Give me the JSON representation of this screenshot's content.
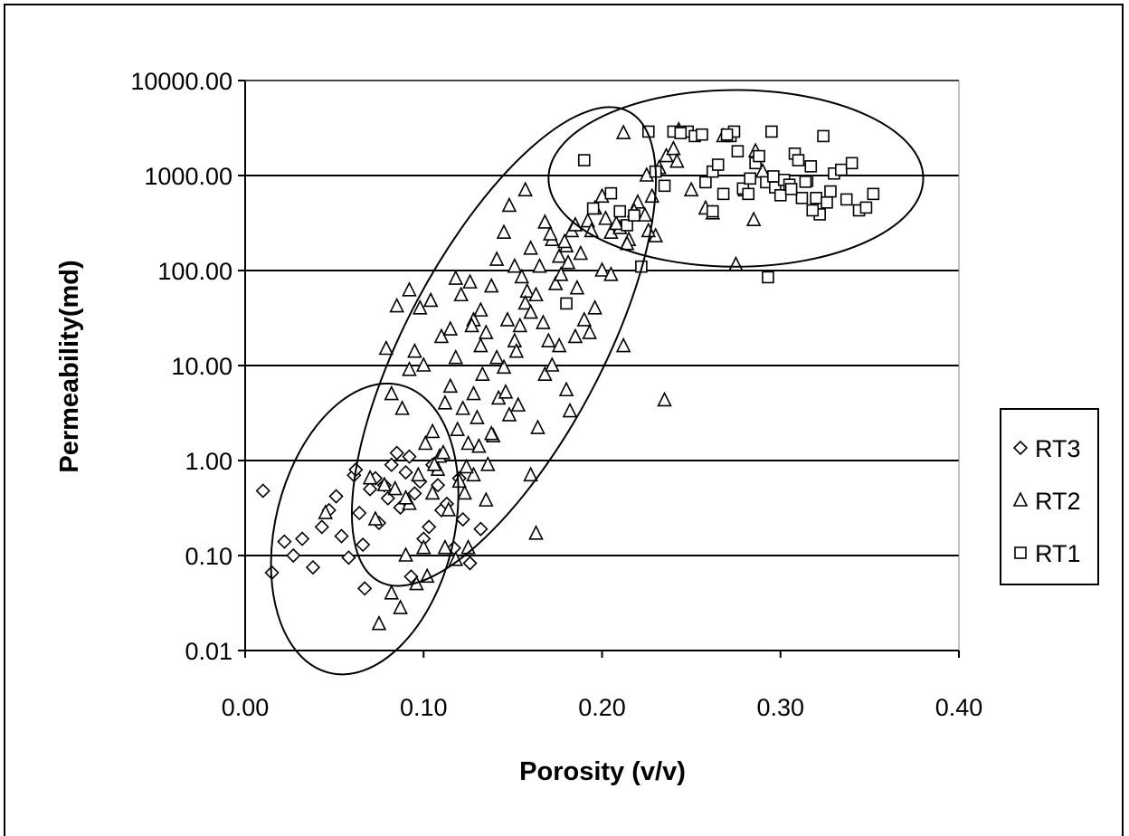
{
  "chart_data": {
    "type": "scatter",
    "title": "",
    "xlabel": "Porosity (v/v)",
    "ylabel": "Permeability(md)",
    "xlim": [
      0,
      0.4
    ],
    "ylim": [
      0.01,
      10000
    ],
    "yscale": "log",
    "grid": "horizontal",
    "legend_position": "right",
    "x_ticks": [
      "0.00",
      "0.10",
      "0.20",
      "0.30",
      "0.40"
    ],
    "y_ticks": [
      "10000.00",
      "1000.00",
      "100.00",
      "10.00",
      "1.00",
      "0.10",
      "0.01"
    ],
    "y_tick_values": [
      10000,
      1000,
      100,
      10,
      1,
      0.1,
      0.01
    ],
    "x_tick_values": [
      0,
      0.1,
      0.2,
      0.3,
      0.4
    ],
    "ellipses": [
      {
        "name": "RT3 envelope",
        "cx": 0.067,
        "cy_log": -0.72,
        "rx": 0.05,
        "ry_log": 1.56,
        "angle": 14
      },
      {
        "name": "RT2 envelope",
        "cx": 0.145,
        "cy_log": 1.2,
        "rx": 0.055,
        "ry_log": 2.8,
        "angle": 28
      },
      {
        "name": "RT1 envelope",
        "cx": 0.275,
        "cy_log": 2.97,
        "rx": 0.105,
        "ry_log": 0.93,
        "angle": 0
      }
    ],
    "series": [
      {
        "name": "RT3",
        "marker": "diamond",
        "points": [
          [
            0.01,
            0.48
          ],
          [
            0.015,
            0.066
          ],
          [
            0.022,
            0.14
          ],
          [
            0.027,
            0.1
          ],
          [
            0.032,
            0.15
          ],
          [
            0.038,
            0.075
          ],
          [
            0.043,
            0.2
          ],
          [
            0.047,
            0.3
          ],
          [
            0.051,
            0.42
          ],
          [
            0.054,
            0.16
          ],
          [
            0.058,
            0.095
          ],
          [
            0.061,
            0.7
          ],
          [
            0.064,
            0.28
          ],
          [
            0.066,
            0.13
          ],
          [
            0.067,
            0.045
          ],
          [
            0.07,
            0.5
          ],
          [
            0.073,
            0.65
          ],
          [
            0.075,
            0.22
          ],
          [
            0.078,
            0.55
          ],
          [
            0.082,
            0.9
          ],
          [
            0.085,
            1.2
          ],
          [
            0.087,
            0.32
          ],
          [
            0.09,
            0.75
          ],
          [
            0.093,
            0.06
          ],
          [
            0.095,
            0.45
          ],
          [
            0.1,
            0.15
          ],
          [
            0.105,
            0.9
          ],
          [
            0.11,
            0.3
          ],
          [
            0.117,
            0.12
          ],
          [
            0.122,
            0.24
          ],
          [
            0.126,
            0.083
          ],
          [
            0.132,
            0.19
          ],
          [
            0.062,
            0.8
          ],
          [
            0.08,
            0.4
          ],
          [
            0.098,
            0.6
          ],
          [
            0.108,
            0.55
          ],
          [
            0.113,
            0.35
          ],
          [
            0.12,
            0.65
          ],
          [
            0.092,
            1.1
          ],
          [
            0.103,
            0.2
          ]
        ]
      },
      {
        "name": "RT2",
        "marker": "triangle",
        "points": [
          [
            0.045,
            0.28
          ],
          [
            0.07,
            0.65
          ],
          [
            0.073,
            0.24
          ],
          [
            0.075,
            0.019
          ],
          [
            0.078,
            0.55
          ],
          [
            0.082,
            0.04
          ],
          [
            0.084,
            0.5
          ],
          [
            0.087,
            0.028
          ],
          [
            0.09,
            0.1
          ],
          [
            0.092,
            0.35
          ],
          [
            0.096,
            0.05
          ],
          [
            0.1,
            0.12
          ],
          [
            0.102,
            0.06
          ],
          [
            0.105,
            0.45
          ],
          [
            0.108,
            0.8
          ],
          [
            0.112,
            0.12
          ],
          [
            0.114,
            0.3
          ],
          [
            0.118,
            0.09
          ],
          [
            0.12,
            0.6
          ],
          [
            0.123,
            0.45
          ],
          [
            0.125,
            0.12
          ],
          [
            0.128,
            0.7
          ],
          [
            0.135,
            0.38
          ],
          [
            0.163,
            0.17
          ],
          [
            0.079,
            15
          ],
          [
            0.085,
            42
          ],
          [
            0.092,
            62
          ],
          [
            0.098,
            40
          ],
          [
            0.104,
            48
          ],
          [
            0.11,
            20
          ],
          [
            0.115,
            24
          ],
          [
            0.118,
            82
          ],
          [
            0.121,
            55
          ],
          [
            0.126,
            75
          ],
          [
            0.128,
            30
          ],
          [
            0.132,
            38
          ],
          [
            0.135,
            22
          ],
          [
            0.138,
            68
          ],
          [
            0.141,
            130
          ],
          [
            0.145,
            250
          ],
          [
            0.148,
            480
          ],
          [
            0.151,
            110
          ],
          [
            0.155,
            85
          ],
          [
            0.158,
            60
          ],
          [
            0.16,
            170
          ],
          [
            0.165,
            110
          ],
          [
            0.168,
            320
          ],
          [
            0.172,
            210
          ],
          [
            0.176,
            140
          ],
          [
            0.18,
            180
          ],
          [
            0.183,
            260
          ],
          [
            0.188,
            150
          ],
          [
            0.192,
            330
          ],
          [
            0.196,
            450
          ],
          [
            0.2,
            600
          ],
          [
            0.205,
            250
          ],
          [
            0.21,
            280
          ],
          [
            0.215,
            210
          ],
          [
            0.22,
            520
          ],
          [
            0.224,
            380
          ],
          [
            0.228,
            600
          ],
          [
            0.232,
            1200
          ],
          [
            0.236,
            1600
          ],
          [
            0.24,
            1900
          ],
          [
            0.243,
            3000
          ],
          [
            0.212,
            2800
          ],
          [
            0.225,
            1000
          ],
          [
            0.23,
            230
          ],
          [
            0.25,
            700
          ],
          [
            0.258,
            450
          ],
          [
            0.262,
            400
          ],
          [
            0.268,
            2600
          ],
          [
            0.275,
            115
          ],
          [
            0.28,
            700
          ],
          [
            0.286,
            1800
          ],
          [
            0.29,
            1100
          ],
          [
            0.285,
            340
          ],
          [
            0.157,
            700
          ],
          [
            0.16,
            0.7
          ],
          [
            0.164,
            2.2
          ],
          [
            0.168,
            8
          ],
          [
            0.172,
            10
          ],
          [
            0.176,
            16
          ],
          [
            0.18,
            5.5
          ],
          [
            0.182,
            3.3
          ],
          [
            0.185,
            20
          ],
          [
            0.19,
            30
          ],
          [
            0.193,
            22
          ],
          [
            0.196,
            40
          ],
          [
            0.2,
            100
          ],
          [
            0.205,
            90
          ],
          [
            0.212,
            16
          ],
          [
            0.235,
            4.3
          ],
          [
            0.082,
            5
          ],
          [
            0.088,
            3.5
          ],
          [
            0.092,
            9
          ],
          [
            0.095,
            14
          ],
          [
            0.1,
            10
          ],
          [
            0.105,
            2
          ],
          [
            0.109,
            1.1
          ],
          [
            0.112,
            4
          ],
          [
            0.115,
            6
          ],
          [
            0.118,
            12
          ],
          [
            0.122,
            3.5
          ],
          [
            0.125,
            1.5
          ],
          [
            0.128,
            5
          ],
          [
            0.13,
            2.8
          ],
          [
            0.133,
            8
          ],
          [
            0.136,
            0.9
          ],
          [
            0.139,
            1.8
          ],
          [
            0.142,
            4.5
          ],
          [
            0.145,
            9.5
          ],
          [
            0.148,
            3
          ],
          [
            0.151,
            18
          ],
          [
            0.154,
            26
          ],
          [
            0.157,
            45
          ],
          [
            0.16,
            36
          ],
          [
            0.163,
            55
          ],
          [
            0.167,
            28
          ],
          [
            0.17,
            18
          ],
          [
            0.174,
            72
          ],
          [
            0.177,
            90
          ],
          [
            0.181,
            120
          ],
          [
            0.186,
            65
          ],
          [
            0.09,
            0.4
          ],
          [
            0.097,
            0.7
          ],
          [
            0.101,
            1.5
          ],
          [
            0.106,
            0.9
          ],
          [
            0.111,
            1.2
          ],
          [
            0.119,
            2.1
          ],
          [
            0.124,
            0.85
          ],
          [
            0.131,
            1.4
          ],
          [
            0.138,
            1.9
          ],
          [
            0.146,
            5.2
          ],
          [
            0.153,
            3.8
          ],
          [
            0.141,
            12
          ],
          [
            0.147,
            30
          ],
          [
            0.152,
            14
          ],
          [
            0.132,
            16
          ],
          [
            0.127,
            26
          ],
          [
            0.171,
            240
          ],
          [
            0.179,
            200
          ],
          [
            0.185,
            300
          ],
          [
            0.194,
            260
          ],
          [
            0.202,
            350
          ],
          [
            0.208,
            310
          ],
          [
            0.214,
            190
          ],
          [
            0.218,
            420
          ],
          [
            0.226,
            260
          ],
          [
            0.242,
            1400
          ]
        ]
      },
      {
        "name": "RT1",
        "marker": "square",
        "points": [
          [
            0.18,
            45
          ],
          [
            0.19,
            1450
          ],
          [
            0.195,
            450
          ],
          [
            0.205,
            650
          ],
          [
            0.21,
            420
          ],
          [
            0.214,
            300
          ],
          [
            0.218,
            380
          ],
          [
            0.222,
            110
          ],
          [
            0.226,
            2900
          ],
          [
            0.23,
            1100
          ],
          [
            0.235,
            780
          ],
          [
            0.24,
            2900
          ],
          [
            0.248,
            2900
          ],
          [
            0.252,
            2600
          ],
          [
            0.256,
            2700
          ],
          [
            0.258,
            850
          ],
          [
            0.262,
            1100
          ],
          [
            0.265,
            1300
          ],
          [
            0.268,
            640
          ],
          [
            0.272,
            2600
          ],
          [
            0.274,
            2900
          ],
          [
            0.276,
            1800
          ],
          [
            0.279,
            730
          ],
          [
            0.282,
            640
          ],
          [
            0.286,
            1350
          ],
          [
            0.288,
            1600
          ],
          [
            0.292,
            850
          ],
          [
            0.295,
            2900
          ],
          [
            0.297,
            750
          ],
          [
            0.3,
            620
          ],
          [
            0.302,
            900
          ],
          [
            0.305,
            800
          ],
          [
            0.308,
            1700
          ],
          [
            0.31,
            1450
          ],
          [
            0.312,
            580
          ],
          [
            0.315,
            880
          ],
          [
            0.317,
            1250
          ],
          [
            0.32,
            580
          ],
          [
            0.322,
            390
          ],
          [
            0.324,
            2600
          ],
          [
            0.326,
            520
          ],
          [
            0.328,
            680
          ],
          [
            0.33,
            1050
          ],
          [
            0.334,
            1150
          ],
          [
            0.337,
            560
          ],
          [
            0.34,
            1350
          ],
          [
            0.344,
            430
          ],
          [
            0.348,
            460
          ],
          [
            0.352,
            640
          ],
          [
            0.293,
            85
          ],
          [
            0.262,
            420
          ],
          [
            0.318,
            430
          ],
          [
            0.306,
            720
          ],
          [
            0.283,
            930
          ],
          [
            0.27,
            2700
          ],
          [
            0.244,
            2800
          ],
          [
            0.296,
            980
          ],
          [
            0.314,
            860
          ]
        ]
      }
    ]
  },
  "legend": {
    "items": [
      {
        "label": "RT3",
        "marker": "diamond"
      },
      {
        "label": "RT2",
        "marker": "triangle"
      },
      {
        "label": "RT1",
        "marker": "square"
      }
    ]
  }
}
